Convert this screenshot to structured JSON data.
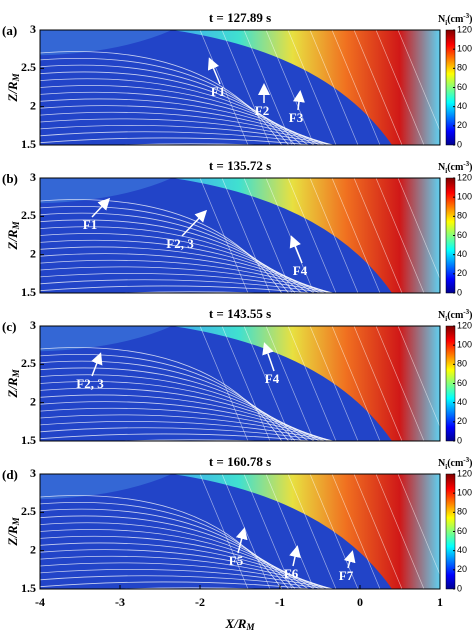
{
  "chart_data": [
    {
      "type": "heatmap",
      "panel": "(a)",
      "title": "t = 127.89 s",
      "ylabel": {
        "base": "Z/R",
        "sub": "M"
      },
      "ylim": [
        1.5,
        3
      ],
      "yticks": [
        1.5,
        2,
        2.5,
        3
      ],
      "xlim": [
        -4,
        1
      ],
      "colorbar": {
        "label": {
          "base": "N",
          "sub": "i",
          "unit": "(cm",
          "sup": "-3",
          "close": ")"
        },
        "clim": [
          0,
          120
        ],
        "ticks": [
          0,
          20,
          40,
          60,
          80,
          100,
          120
        ]
      },
      "annotations": [
        "F1",
        "F2",
        "F3"
      ]
    },
    {
      "type": "heatmap",
      "panel": "(b)",
      "title": "t = 135.72 s",
      "ylabel": {
        "base": "Z/R",
        "sub": "M"
      },
      "ylim": [
        1.5,
        3
      ],
      "yticks": [
        1.5,
        2,
        2.5,
        3
      ],
      "xlim": [
        -4,
        1
      ],
      "colorbar": {
        "label": {
          "base": "N",
          "sub": "i",
          "unit": "(cm",
          "sup": "-3",
          "close": ")"
        },
        "clim": [
          0,
          120
        ],
        "ticks": [
          0,
          20,
          40,
          60,
          80,
          100,
          120
        ]
      },
      "annotations": [
        "F1",
        "F2, 3",
        "F4"
      ]
    },
    {
      "type": "heatmap",
      "panel": "(c)",
      "title": "t = 143.55 s",
      "ylabel": {
        "base": "Z/R",
        "sub": "M"
      },
      "ylim": [
        1.5,
        3
      ],
      "yticks": [
        1.5,
        2,
        2.5,
        3
      ],
      "xlim": [
        -4,
        1
      ],
      "colorbar": {
        "label": {
          "base": "N",
          "sub": "i",
          "unit": "(cm",
          "sup": "-3",
          "close": ")"
        },
        "clim": [
          0,
          120
        ],
        "ticks": [
          0,
          20,
          40,
          60,
          80,
          100,
          120
        ]
      },
      "annotations": [
        "F2, 3",
        "F4"
      ]
    },
    {
      "type": "heatmap",
      "panel": "(d)",
      "title": "t = 160.78 s",
      "ylabel": {
        "base": "Z/R",
        "sub": "M"
      },
      "ylim": [
        1.5,
        3
      ],
      "yticks": [
        1.5,
        2,
        2.5,
        3
      ],
      "xlim": [
        -4,
        1
      ],
      "xticks": [
        -4,
        -3,
        -2,
        -1,
        0,
        1
      ],
      "xlabel": {
        "base": "X/R",
        "sub": "M"
      },
      "colorbar": {
        "label": {
          "base": "N",
          "sub": "i",
          "unit": "(cm",
          "sup": "-3",
          "close": ")"
        },
        "clim": [
          0,
          120
        ],
        "ticks": [
          0,
          20,
          40,
          60,
          80,
          100,
          120
        ]
      },
      "annotations": [
        "F5",
        "F6",
        "F7"
      ]
    }
  ]
}
